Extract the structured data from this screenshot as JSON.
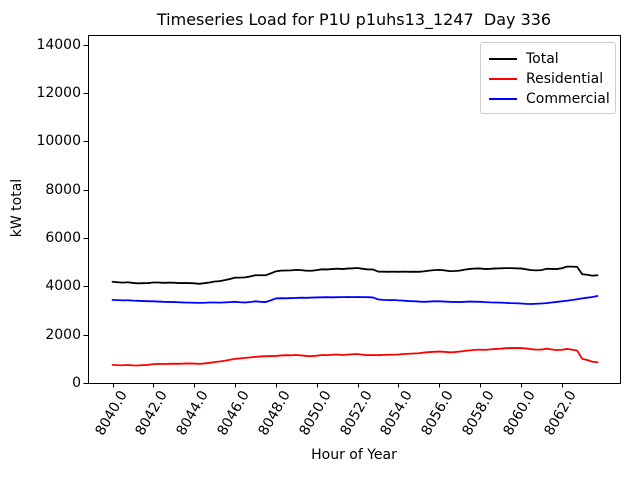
{
  "figure": {
    "background": "#ffffff"
  },
  "chart_data": {
    "type": "line",
    "title": "Timeseries Load for P1U p1uhs13_1247  Day 336",
    "xlabel": "Hour of Year",
    "ylabel": "kW total",
    "grid": false,
    "legend_position": "upper right",
    "xlim": [
      8038.8,
      8064.85
    ],
    "ylim": [
      0,
      14400
    ],
    "xticks": {
      "values": [
        8040,
        8042,
        8044,
        8046,
        8048,
        8050,
        8052,
        8054,
        8056,
        8058,
        8060,
        8062
      ],
      "labels": [
        "8040.0",
        "8042.0",
        "8044.0",
        "8046.0",
        "8048.0",
        "8050.0",
        "8052.0",
        "8054.0",
        "8056.0",
        "8058.0",
        "8060.0",
        "8062.0"
      ]
    },
    "yticks": {
      "values": [
        0,
        2000,
        4000,
        6000,
        8000,
        10000,
        12000,
        14000
      ],
      "labels": [
        "0",
        "2000",
        "4000",
        "6000",
        "8000",
        "10000",
        "12000",
        "14000"
      ]
    },
    "x": [
      8040.0,
      8040.25,
      8040.5,
      8040.75,
      8041.0,
      8041.25,
      8041.5,
      8041.75,
      8042.0,
      8042.25,
      8042.5,
      8042.75,
      8043.0,
      8043.25,
      8043.5,
      8043.75,
      8044.0,
      8044.25,
      8044.5,
      8044.75,
      8045.0,
      8045.25,
      8045.5,
      8045.75,
      8046.0,
      8046.25,
      8046.5,
      8046.75,
      8047.0,
      8047.25,
      8047.5,
      8047.75,
      8048.0,
      8048.25,
      8048.5,
      8048.75,
      8049.0,
      8049.25,
      8049.5,
      8049.75,
      8050.0,
      8050.25,
      8050.5,
      8050.75,
      8051.0,
      8051.25,
      8051.5,
      8051.75,
      8052.0,
      8052.25,
      8052.5,
      8052.75,
      8053.0,
      8053.25,
      8053.5,
      8053.75,
      8054.0,
      8054.25,
      8054.5,
      8054.75,
      8055.0,
      8055.25,
      8055.5,
      8055.75,
      8056.0,
      8056.25,
      8056.5,
      8056.75,
      8057.0,
      8057.25,
      8057.5,
      8057.75,
      8058.0,
      8058.25,
      8058.5,
      8058.75,
      8059.0,
      8059.25,
      8059.5,
      8059.75,
      8060.0,
      8060.25,
      8060.5,
      8060.75,
      8061.0,
      8061.25,
      8061.5,
      8061.75,
      8062.0,
      8062.25,
      8062.5,
      8062.75,
      8063.0,
      8063.25,
      8063.5,
      8063.75
    ],
    "series": [
      {
        "name": "Total",
        "color": "#000000",
        "values": [
          4190,
          4170,
          4155,
          4170,
          4140,
          4125,
          4130,
          4135,
          4160,
          4160,
          4145,
          4150,
          4150,
          4135,
          4135,
          4135,
          4125,
          4105,
          4130,
          4160,
          4200,
          4215,
          4255,
          4305,
          4360,
          4360,
          4370,
          4410,
          4460,
          4460,
          4460,
          4535,
          4620,
          4650,
          4655,
          4660,
          4680,
          4670,
          4645,
          4645,
          4670,
          4705,
          4700,
          4715,
          4730,
          4715,
          4735,
          4745,
          4760,
          4725,
          4700,
          4700,
          4610,
          4605,
          4600,
          4610,
          4600,
          4610,
          4600,
          4605,
          4600,
          4620,
          4650,
          4670,
          4680,
          4660,
          4630,
          4635,
          4650,
          4690,
          4720,
          4735,
          4740,
          4715,
          4725,
          4740,
          4745,
          4755,
          4755,
          4745,
          4740,
          4705,
          4670,
          4660,
          4670,
          4725,
          4720,
          4715,
          4750,
          4815,
          4815,
          4805,
          4500,
          4480,
          4440,
          4460
        ]
      },
      {
        "name": "Residential",
        "color": "#ff0000",
        "values": [
          750,
          740,
          735,
          745,
          730,
          725,
          740,
          750,
          780,
          790,
          785,
          795,
          800,
          795,
          805,
          810,
          805,
          790,
          810,
          830,
          870,
          890,
          920,
          960,
          1000,
          1020,
          1040,
          1060,
          1080,
          1100,
          1110,
          1115,
          1120,
          1140,
          1150,
          1145,
          1160,
          1140,
          1120,
          1110,
          1130,
          1160,
          1150,
          1170,
          1180,
          1160,
          1175,
          1190,
          1200,
          1170,
          1150,
          1160,
          1150,
          1165,
          1170,
          1175,
          1180,
          1200,
          1210,
          1220,
          1230,
          1260,
          1280,
          1290,
          1300,
          1290,
          1270,
          1280,
          1300,
          1330,
          1350,
          1370,
          1380,
          1370,
          1390,
          1410,
          1420,
          1440,
          1450,
          1445,
          1450,
          1430,
          1400,
          1380,
          1380,
          1420,
          1390,
          1360,
          1370,
          1410,
          1380,
          1340,
          1000,
          950,
          880,
          860
        ]
      },
      {
        "name": "Commercial",
        "color": "#0000ff",
        "values": [
          3440,
          3430,
          3420,
          3425,
          3410,
          3400,
          3390,
          3385,
          3380,
          3370,
          3360,
          3355,
          3350,
          3340,
          3330,
          3325,
          3320,
          3315,
          3320,
          3330,
          3330,
          3325,
          3335,
          3345,
          3360,
          3340,
          3330,
          3350,
          3380,
          3360,
          3350,
          3420,
          3500,
          3510,
          3505,
          3515,
          3520,
          3530,
          3525,
          3535,
          3540,
          3545,
          3550,
          3545,
          3550,
          3555,
          3560,
          3555,
          3560,
          3555,
          3550,
          3540,
          3460,
          3440,
          3430,
          3435,
          3420,
          3410,
          3390,
          3385,
          3370,
          3360,
          3370,
          3380,
          3380,
          3370,
          3360,
          3355,
          3350,
          3360,
          3370,
          3365,
          3360,
          3345,
          3335,
          3330,
          3325,
          3315,
          3305,
          3300,
          3290,
          3275,
          3270,
          3280,
          3290,
          3305,
          3330,
          3355,
          3380,
          3405,
          3435,
          3465,
          3500,
          3530,
          3560,
          3600
        ]
      }
    ]
  }
}
